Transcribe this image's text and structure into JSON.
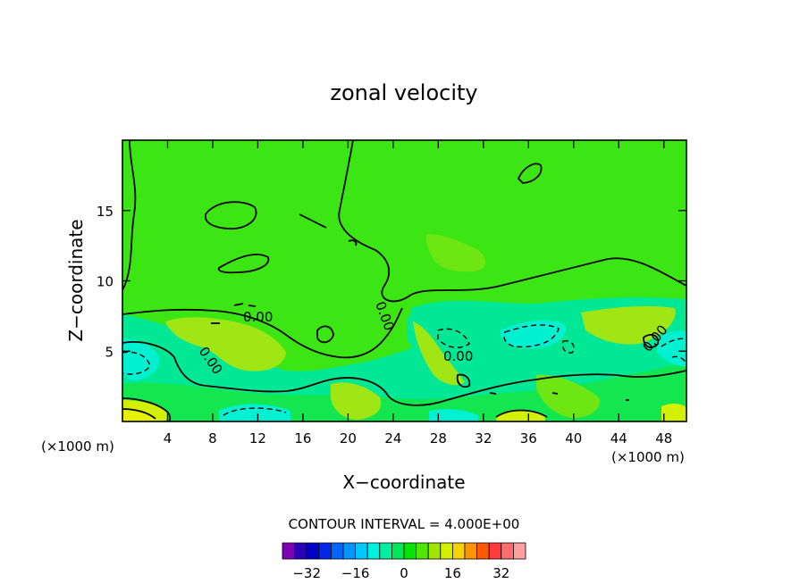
{
  "chart_data": {
    "type": "contour",
    "title": "zonal velocity",
    "xlabel": "X−coordinate",
    "ylabel": "Z−coordinate",
    "x_unit_left": "(×1000 m)",
    "x_unit_right": "(×1000 m)",
    "xlim": [
      0,
      50
    ],
    "ylim": [
      0,
      20
    ],
    "x_ticks": [
      4,
      8,
      12,
      16,
      20,
      24,
      28,
      32,
      36,
      40,
      44,
      48
    ],
    "y_ticks": [
      5,
      10,
      15
    ],
    "contour_interval_label": "CONTOUR INTERVAL = 4.000E+00",
    "contour_label": "0.00",
    "colorbar": {
      "levels": [
        -36,
        -32,
        -28,
        -24,
        -20,
        -16,
        -12,
        -8,
        -4,
        0,
        4,
        8,
        12,
        16,
        20,
        24,
        28,
        32,
        36
      ],
      "tick_values": [
        -32,
        -16,
        0,
        16,
        32
      ],
      "tick_labels": [
        "−32",
        "−16",
        "0",
        "16",
        "32"
      ],
      "colors": [
        "#7d00b4",
        "#2a00b8",
        "#0000c8",
        "#0028e6",
        "#0064ff",
        "#0096ff",
        "#00c8ff",
        "#00f0e0",
        "#00f0a0",
        "#00e85a",
        "#00e600",
        "#50e600",
        "#a0e600",
        "#d2f000",
        "#f5d200",
        "#ff9600",
        "#ff5a00",
        "#ff3c3c",
        "#ff6e6e",
        "#ffa0a0"
      ]
    },
    "field_colors": {
      "background": "#3ce614",
      "slightly_positive": "#6ee614",
      "weak_negative": "#14e650",
      "negative": "#00e896",
      "strong_negative": "#00f0d2",
      "positive": "#a0e614",
      "strong_positive": "#d2f000",
      "max_positive": "#e6f000"
    },
    "grid": false,
    "legend": "colorbar-bottom"
  }
}
